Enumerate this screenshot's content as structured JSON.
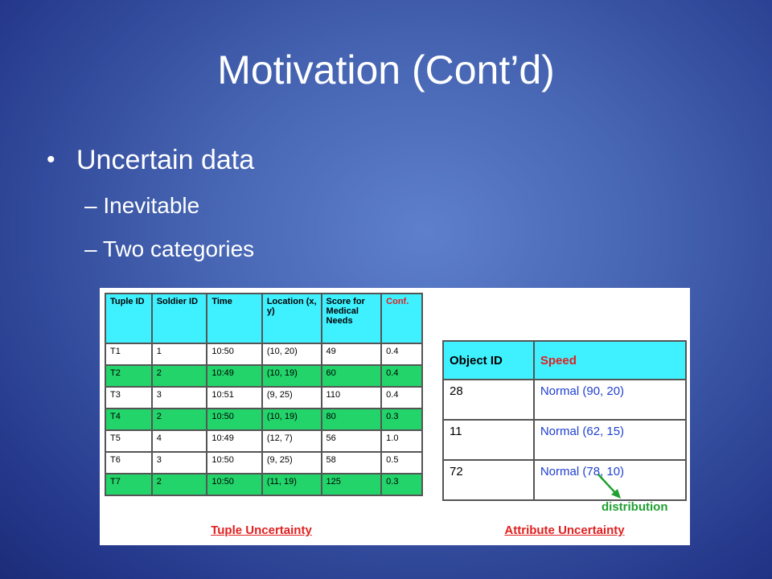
{
  "title": "Motivation (Cont’d)",
  "bullets": [
    {
      "text": "Uncertain data",
      "sub": [
        "Inevitable",
        "Two categories"
      ]
    }
  ],
  "tuple_table": {
    "header": [
      "Tuple ID",
      "Soldier ID",
      "Time",
      "Location (x, y)",
      "Score for Medical Needs",
      "Conf."
    ],
    "rows": [
      [
        "T1",
        "1",
        "10:50",
        "(10, 20)",
        "49",
        "0.4"
      ],
      [
        "T2",
        "2",
        "10:49",
        "(10, 19)",
        "60",
        "0.4"
      ],
      [
        "T3",
        "3",
        "10:51",
        "(9, 25)",
        "110",
        "0.4"
      ],
      [
        "T4",
        "2",
        "10:50",
        "(10, 19)",
        "80",
        "0.3"
      ],
      [
        "T5",
        "4",
        "10:49",
        "(12, 7)",
        "56",
        "1.0"
      ],
      [
        "T6",
        "3",
        "10:50",
        "(9, 25)",
        "58",
        "0.5"
      ],
      [
        "T7",
        "2",
        "10:50",
        "(11, 19)",
        "125",
        "0.3"
      ]
    ],
    "caption": "Tuple Uncertainty"
  },
  "attribute_table": {
    "header": [
      "Object ID",
      "Speed"
    ],
    "rows": [
      [
        "28",
        "Normal (90, 20)"
      ],
      [
        "11",
        "Normal (62, 15)"
      ],
      [
        "72",
        "Normal (78, 10)"
      ]
    ],
    "caption": "Attribute Uncertainty",
    "annotation": "distribution"
  }
}
